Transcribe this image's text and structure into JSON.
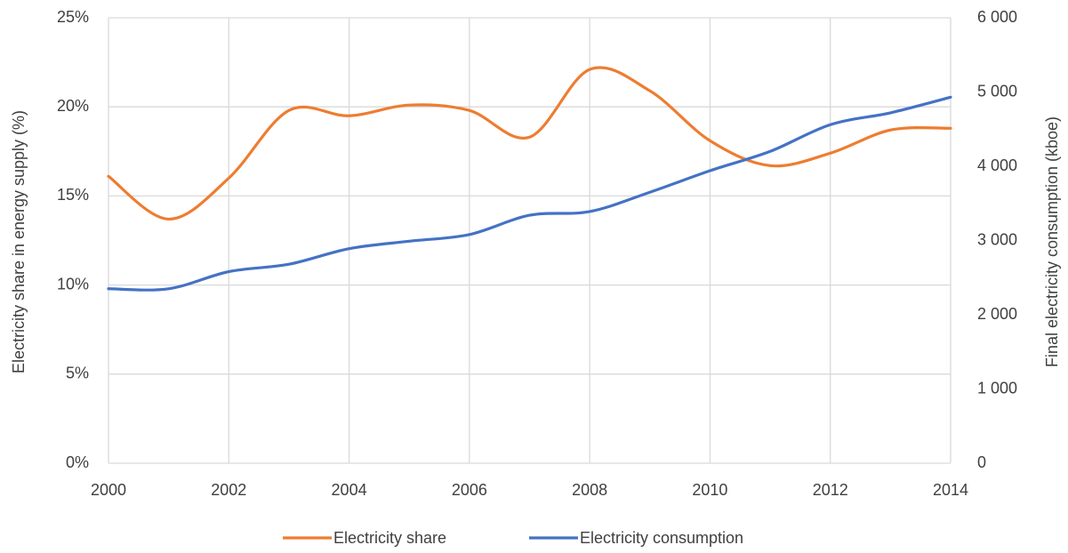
{
  "chart_data": {
    "type": "line",
    "x": [
      2000,
      2001,
      2002,
      2003,
      2004,
      2005,
      2006,
      2007,
      2008,
      2009,
      2010,
      2011,
      2012,
      2013,
      2014
    ],
    "xlim": [
      2000,
      2014
    ],
    "xticks": [
      2000,
      2002,
      2004,
      2006,
      2008,
      2010,
      2012,
      2014
    ],
    "ylim": [
      0,
      25
    ],
    "yticks": [
      {
        "value": 0,
        "label": "0%"
      },
      {
        "value": 5,
        "label": "5%"
      },
      {
        "value": 10,
        "label": "10%"
      },
      {
        "value": 15,
        "label": "15%"
      },
      {
        "value": 20,
        "label": "20%"
      },
      {
        "value": 25,
        "label": "25%"
      }
    ],
    "y2lim": [
      0,
      6000
    ],
    "y2ticks": [
      0,
      {
        "value": 1000,
        "label": "1 000"
      },
      {
        "value": 2000,
        "label": "2 000"
      },
      {
        "value": 3000,
        "label": "3 000"
      },
      {
        "value": 4000,
        "label": "4 000"
      },
      {
        "value": 5000,
        "label": "5 000"
      },
      {
        "value": 6000,
        "label": "6 000"
      }
    ],
    "ylabel": "Electricity share in energy supply (%)",
    "y2label": "Final electricity consumption (kboe)",
    "grid": true,
    "legend": "bottom",
    "series": [
      {
        "name": "Electricity share",
        "color": "#ed7d31",
        "values": [
          16.1,
          13.7,
          16.0,
          19.8,
          19.5,
          20.1,
          19.8,
          18.3,
          22.1,
          20.9,
          18.1,
          16.7,
          17.4,
          18.7,
          18.8
        ]
      },
      {
        "name": "Electricity consumption",
        "color": "#4472c4",
        "axis": "y2",
        "values": [
          2350,
          2350,
          2580,
          2680,
          2890,
          2990,
          3080,
          3340,
          3390,
          3650,
          3940,
          4200,
          4560,
          4720,
          4930
        ]
      }
    ]
  }
}
